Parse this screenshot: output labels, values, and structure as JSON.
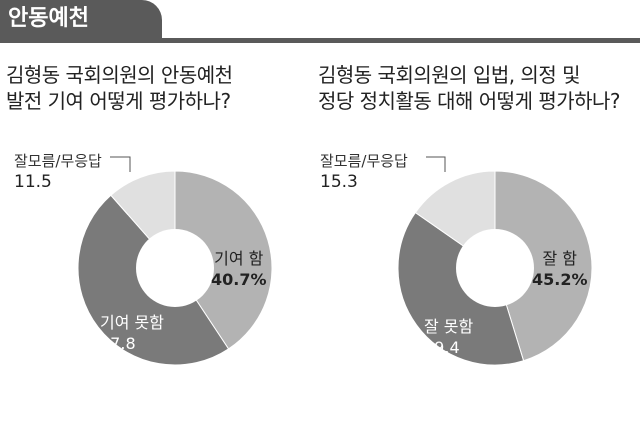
{
  "section_tag": "안동예천",
  "charts": [
    {
      "title_lines": [
        "김형동 국회의원의 안동예천",
        "발전 기여 어떻게 평가하나?"
      ],
      "chart_data": {
        "type": "pie",
        "categories": [
          "기여 함",
          "기여 못함",
          "잘모름/무응답"
        ],
        "values": [
          40.7,
          47.8,
          11.5
        ],
        "value_labels": [
          "40.7%",
          "47.8",
          "11.5"
        ],
        "colors": [
          "#b3b3b3",
          "#7a7a7a",
          "#e0e0e0"
        ]
      }
    },
    {
      "title_lines": [
        "김형동 국회의원의 입법, 의정 및",
        "정당 정치활동 대해 어떻게 평가하나?"
      ],
      "chart_data": {
        "type": "pie",
        "categories": [
          "잘 함",
          "잘 못함",
          "잘모름/무응답"
        ],
        "values": [
          45.2,
          39.4,
          15.3
        ],
        "value_labels": [
          "45.2%",
          "39.4",
          "15.3"
        ],
        "colors": [
          "#b3b3b3",
          "#7a7a7a",
          "#e0e0e0"
        ]
      }
    }
  ]
}
